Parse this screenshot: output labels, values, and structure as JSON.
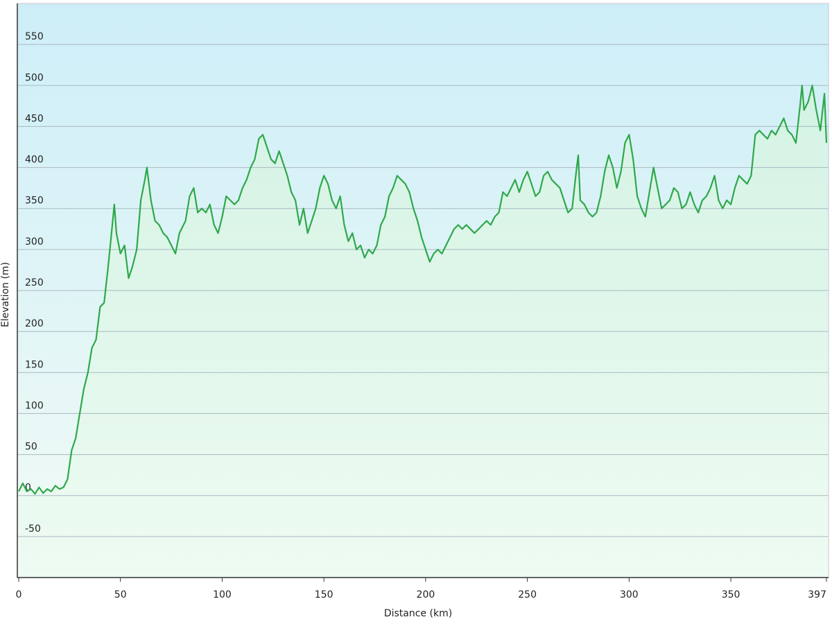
{
  "chart_data": {
    "type": "line",
    "x_label": "Distance  (km)",
    "y_label": "Elevation (m)",
    "color": "#2ea84a",
    "xlim": [
      0,
      397
    ],
    "xticks": [
      0,
      50,
      100,
      150,
      200,
      250,
      300,
      350,
      397
    ],
    "ylim": [
      -100,
      600
    ],
    "yticks": [
      -50,
      0,
      50,
      100,
      150,
      200,
      250,
      300,
      350,
      400,
      450,
      500,
      550
    ],
    "grid": true,
    "x": [
      0,
      2,
      4,
      6,
      8,
      10,
      12,
      14,
      16,
      18,
      20,
      22,
      24,
      26,
      28,
      30,
      32,
      34,
      36,
      38,
      40,
      42,
      44,
      46,
      47,
      48,
      50,
      52,
      54,
      56,
      58,
      60,
      62,
      63,
      65,
      67,
      69,
      71,
      73,
      75,
      77,
      79,
      82,
      84,
      86,
      88,
      90,
      92,
      94,
      96,
      98,
      100,
      102,
      104,
      106,
      108,
      110,
      112,
      114,
      116,
      118,
      120,
      122,
      124,
      126,
      128,
      130,
      132,
      134,
      136,
      138,
      140,
      142,
      144,
      146,
      148,
      150,
      152,
      154,
      156,
      158,
      160,
      162,
      164,
      166,
      168,
      170,
      172,
      174,
      176,
      178,
      180,
      182,
      184,
      186,
      188,
      190,
      192,
      194,
      196,
      198,
      200,
      202,
      204,
      206,
      208,
      210,
      212,
      214,
      216,
      218,
      220,
      222,
      224,
      226,
      228,
      230,
      232,
      234,
      236,
      238,
      240,
      242,
      244,
      246,
      248,
      250,
      252,
      254,
      256,
      258,
      260,
      262,
      264,
      266,
      268,
      270,
      272,
      274,
      275,
      276,
      278,
      280,
      282,
      284,
      286,
      288,
      290,
      292,
      294,
      296,
      298,
      300,
      302,
      304,
      306,
      308,
      310,
      312,
      314,
      316,
      318,
      320,
      322,
      324,
      326,
      328,
      330,
      332,
      334,
      336,
      338,
      340,
      342,
      344,
      346,
      348,
      350,
      352,
      354,
      356,
      358,
      360,
      362,
      364,
      366,
      368,
      370,
      372,
      374,
      376,
      378,
      380,
      382,
      384,
      385,
      386,
      388,
      390,
      392,
      394,
      396,
      397
    ],
    "values": [
      5,
      15,
      5,
      8,
      2,
      10,
      3,
      8,
      5,
      12,
      8,
      10,
      20,
      55,
      70,
      100,
      130,
      150,
      180,
      190,
      230,
      235,
      280,
      330,
      355,
      320,
      295,
      305,
      265,
      280,
      300,
      360,
      385,
      400,
      360,
      335,
      330,
      320,
      315,
      305,
      295,
      320,
      335,
      365,
      375,
      345,
      350,
      345,
      355,
      330,
      320,
      340,
      365,
      360,
      355,
      360,
      375,
      385,
      400,
      410,
      435,
      440,
      425,
      410,
      405,
      420,
      405,
      390,
      370,
      360,
      330,
      350,
      320,
      335,
      350,
      375,
      390,
      380,
      360,
      350,
      365,
      330,
      310,
      320,
      300,
      305,
      290,
      300,
      295,
      305,
      330,
      340,
      365,
      375,
      390,
      385,
      380,
      370,
      350,
      335,
      315,
      300,
      285,
      295,
      300,
      295,
      305,
      315,
      325,
      330,
      325,
      330,
      325,
      320,
      325,
      330,
      335,
      330,
      340,
      345,
      370,
      365,
      375,
      385,
      370,
      385,
      395,
      380,
      365,
      370,
      390,
      395,
      385,
      380,
      375,
      360,
      345,
      350,
      395,
      415,
      360,
      355,
      345,
      340,
      345,
      365,
      395,
      415,
      400,
      375,
      395,
      430,
      440,
      410,
      365,
      350,
      340,
      370,
      400,
      375,
      350,
      355,
      360,
      375,
      370,
      350,
      355,
      370,
      355,
      345,
      360,
      365,
      375,
      390,
      360,
      350,
      360,
      355,
      375,
      390,
      385,
      380,
      390,
      440,
      445,
      440,
      435,
      445,
      440,
      450,
      460,
      445,
      440,
      430,
      475,
      500,
      470,
      480,
      500,
      470,
      445,
      490,
      430
    ]
  }
}
